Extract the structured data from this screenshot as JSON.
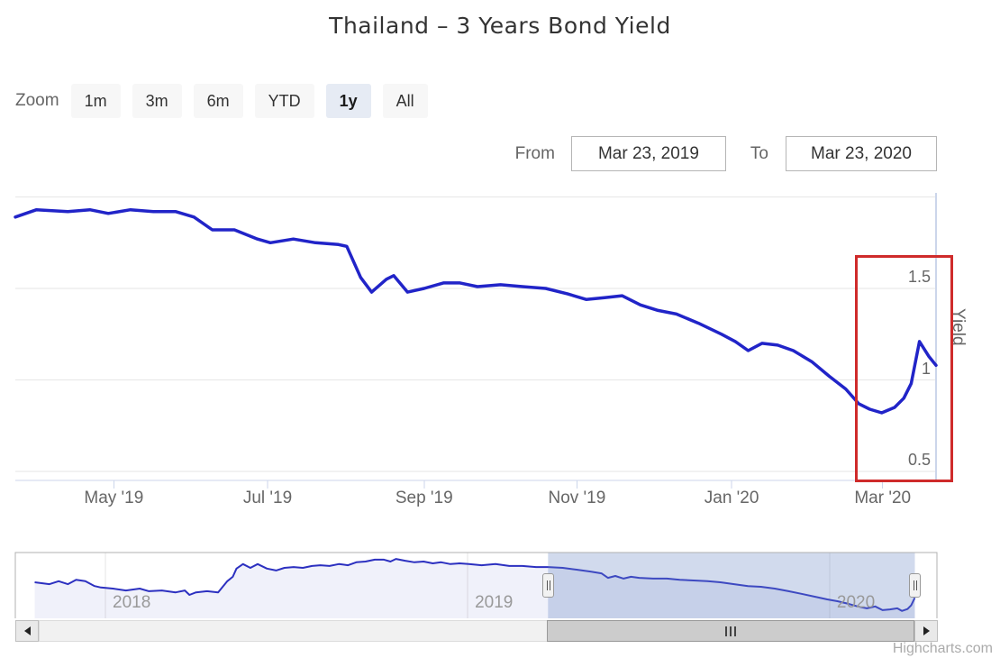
{
  "title": "Thailand – 3 Years Bond Yield",
  "toolbar": {
    "zoom_label": "Zoom",
    "buttons": [
      "1m",
      "3m",
      "6m",
      "YTD",
      "1y",
      "All"
    ],
    "selected": "1y"
  },
  "range": {
    "from_label": "From",
    "from_value": "Mar 23, 2019",
    "to_label": "To",
    "to_value": "Mar 23, 2020"
  },
  "credits": "Highcharts.com",
  "icons": {
    "scrollbar_left": "left-arrow",
    "scrollbar_right": "right-arrow",
    "navigator_handle": "grip-bars",
    "scrollbar_thumb": "grip-bars"
  },
  "colors": {
    "series_line": "#2124c8",
    "navigator_line": "#2c30c0",
    "navigator_fill": "rgba(65,75,190,0.08)",
    "navigator_mask": "rgba(102,133,194,0.3)",
    "navigator_outline": "#b0b0b0",
    "grid_line": "#e6e6e6",
    "axis_line": "#ccd6eb",
    "year_tick": "rgba(0,0,0,0.10)",
    "highlight_box": "#cf2b2b",
    "selected_button_bg": "#e6ebf4"
  },
  "chart_data": {
    "type": "line",
    "title": "Thailand – 3 Years Bond Yield",
    "xlabel": "",
    "ylabel": "Yield",
    "unit": "percent",
    "x_range_displayed": [
      "Mar 23, 2019",
      "Mar 23, 2020"
    ],
    "legend": "off",
    "grid": "on",
    "yaxis": {
      "side": "right",
      "ylim": [
        0.45,
        2.02
      ],
      "grid_values": [
        2.0,
        1.5,
        1.0,
        0.5
      ],
      "ticks": [
        {
          "label": "1.5",
          "value": 1.5
        },
        {
          "label": "1",
          "value": 1.0
        },
        {
          "label": "0.5",
          "value": 0.5
        }
      ]
    },
    "xaxis": {
      "ticks": [
        {
          "label": "May '19",
          "t": 0.107
        },
        {
          "label": "Jul '19",
          "t": 0.274
        },
        {
          "label": "Sep '19",
          "t": 0.444
        },
        {
          "label": "Nov '19",
          "t": 0.61
        },
        {
          "label": "Jan '20",
          "t": 0.778
        },
        {
          "label": "Mar '20",
          "t": 0.942
        }
      ]
    },
    "series": [
      {
        "name": "Thailand 3 Years Bond Yield",
        "points": [
          [
            0.0,
            1.89
          ],
          [
            0.023,
            1.93
          ],
          [
            0.057,
            1.92
          ],
          [
            0.081,
            1.93
          ],
          [
            0.101,
            1.91
          ],
          [
            0.125,
            1.93
          ],
          [
            0.15,
            1.92
          ],
          [
            0.174,
            1.92
          ],
          [
            0.194,
            1.89
          ],
          [
            0.214,
            1.82
          ],
          [
            0.238,
            1.82
          ],
          [
            0.263,
            1.77
          ],
          [
            0.277,
            1.75
          ],
          [
            0.302,
            1.77
          ],
          [
            0.326,
            1.75
          ],
          [
            0.351,
            1.74
          ],
          [
            0.36,
            1.73
          ],
          [
            0.375,
            1.56
          ],
          [
            0.387,
            1.48
          ],
          [
            0.403,
            1.55
          ],
          [
            0.411,
            1.57
          ],
          [
            0.426,
            1.48
          ],
          [
            0.444,
            1.5
          ],
          [
            0.465,
            1.53
          ],
          [
            0.483,
            1.53
          ],
          [
            0.502,
            1.51
          ],
          [
            0.527,
            1.52
          ],
          [
            0.551,
            1.51
          ],
          [
            0.576,
            1.5
          ],
          [
            0.6,
            1.47
          ],
          [
            0.62,
            1.44
          ],
          [
            0.64,
            1.45
          ],
          [
            0.659,
            1.46
          ],
          [
            0.679,
            1.41
          ],
          [
            0.698,
            1.38
          ],
          [
            0.718,
            1.36
          ],
          [
            0.742,
            1.31
          ],
          [
            0.767,
            1.25
          ],
          [
            0.782,
            1.21
          ],
          [
            0.796,
            1.16
          ],
          [
            0.811,
            1.2
          ],
          [
            0.828,
            1.19
          ],
          [
            0.845,
            1.16
          ],
          [
            0.865,
            1.1
          ],
          [
            0.884,
            1.02
          ],
          [
            0.902,
            0.95
          ],
          [
            0.916,
            0.87
          ],
          [
            0.928,
            0.84
          ],
          [
            0.941,
            0.82
          ],
          [
            0.955,
            0.85
          ],
          [
            0.965,
            0.9
          ],
          [
            0.973,
            0.98
          ],
          [
            0.982,
            1.21
          ],
          [
            0.992,
            1.13
          ],
          [
            1.0,
            1.08
          ]
        ]
      }
    ],
    "navigator": {
      "x_ticks": [
        {
          "label": "2018",
          "t": 0.0978
        },
        {
          "label": "2019",
          "t": 0.4908
        },
        {
          "label": "2020",
          "t": 0.8836
        }
      ],
      "selected_range_t": [
        0.578,
        0.976
      ],
      "ylim": [
        0.7,
        2.4
      ],
      "points": [
        [
          0.021,
          1.67
        ],
        [
          0.037,
          1.62
        ],
        [
          0.047,
          1.7
        ],
        [
          0.057,
          1.62
        ],
        [
          0.066,
          1.74
        ],
        [
          0.076,
          1.7
        ],
        [
          0.086,
          1.57
        ],
        [
          0.093,
          1.53
        ],
        [
          0.106,
          1.5
        ],
        [
          0.12,
          1.45
        ],
        [
          0.135,
          1.5
        ],
        [
          0.145,
          1.43
        ],
        [
          0.159,
          1.45
        ],
        [
          0.174,
          1.4
        ],
        [
          0.184,
          1.45
        ],
        [
          0.189,
          1.33
        ],
        [
          0.196,
          1.4
        ],
        [
          0.208,
          1.43
        ],
        [
          0.22,
          1.4
        ],
        [
          0.23,
          1.7
        ],
        [
          0.236,
          1.82
        ],
        [
          0.24,
          2.04
        ],
        [
          0.247,
          2.16
        ],
        [
          0.255,
          2.06
        ],
        [
          0.263,
          2.16
        ],
        [
          0.273,
          2.04
        ],
        [
          0.283,
          1.99
        ],
        [
          0.292,
          2.06
        ],
        [
          0.302,
          2.08
        ],
        [
          0.312,
          2.06
        ],
        [
          0.322,
          2.11
        ],
        [
          0.331,
          2.13
        ],
        [
          0.341,
          2.11
        ],
        [
          0.351,
          2.16
        ],
        [
          0.361,
          2.13
        ],
        [
          0.37,
          2.21
        ],
        [
          0.38,
          2.23
        ],
        [
          0.39,
          2.28
        ],
        [
          0.4,
          2.28
        ],
        [
          0.407,
          2.23
        ],
        [
          0.413,
          2.3
        ],
        [
          0.423,
          2.25
        ],
        [
          0.433,
          2.21
        ],
        [
          0.443,
          2.23
        ],
        [
          0.453,
          2.18
        ],
        [
          0.462,
          2.21
        ],
        [
          0.472,
          2.16
        ],
        [
          0.482,
          2.18
        ],
        [
          0.492,
          2.16
        ],
        [
          0.506,
          2.13
        ],
        [
          0.521,
          2.16
        ],
        [
          0.536,
          2.11
        ],
        [
          0.55,
          2.11
        ],
        [
          0.565,
          2.08
        ],
        [
          0.578,
          2.08
        ],
        [
          0.594,
          2.06
        ],
        [
          0.609,
          2.01
        ],
        [
          0.624,
          1.96
        ],
        [
          0.636,
          1.91
        ],
        [
          0.643,
          1.79
        ],
        [
          0.651,
          1.84
        ],
        [
          0.66,
          1.77
        ],
        [
          0.668,
          1.82
        ],
        [
          0.677,
          1.79
        ],
        [
          0.692,
          1.77
        ],
        [
          0.707,
          1.77
        ],
        [
          0.721,
          1.74
        ],
        [
          0.736,
          1.72
        ],
        [
          0.751,
          1.7
        ],
        [
          0.765,
          1.67
        ],
        [
          0.78,
          1.62
        ],
        [
          0.795,
          1.57
        ],
        [
          0.809,
          1.55
        ],
        [
          0.824,
          1.5
        ],
        [
          0.839,
          1.43
        ],
        [
          0.853,
          1.36
        ],
        [
          0.868,
          1.28
        ],
        [
          0.881,
          1.21
        ],
        [
          0.892,
          1.16
        ],
        [
          0.904,
          1.09
        ],
        [
          0.914,
          1.02
        ],
        [
          0.924,
          0.97
        ],
        [
          0.933,
          1.02
        ],
        [
          0.941,
          0.92
        ],
        [
          0.949,
          0.94
        ],
        [
          0.957,
          0.97
        ],
        [
          0.962,
          0.9
        ],
        [
          0.968,
          0.95
        ],
        [
          0.972,
          1.05
        ],
        [
          0.976,
          1.25
        ]
      ]
    }
  }
}
